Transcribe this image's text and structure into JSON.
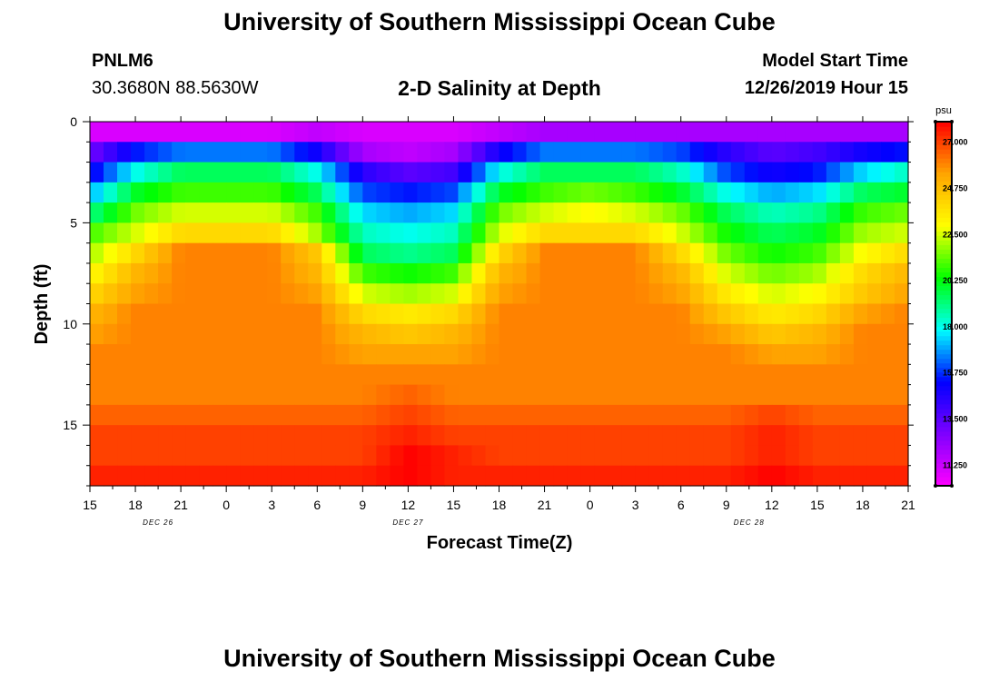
{
  "page": {
    "title_top": "University of Southern Mississippi Ocean Cube",
    "title_bottom": "University of Southern Mississippi Ocean Cube",
    "station_id": "PNLM6",
    "coordinates": "30.3680N 88.5630W",
    "plot_title": "2-D Salinity at Depth",
    "model_start_label": "Model Start Time",
    "model_start_value": "12/26/2019 Hour 15"
  },
  "colors": {
    "scale": [
      "#ff00ff",
      "#7f00ff",
      "#0000ff",
      "#00ffff",
      "#00ff00",
      "#ffff00",
      "#ffa500",
      "#ff0000"
    ],
    "axis": "#000000"
  },
  "chart_data": {
    "type": "heatmap",
    "title": "2-D Salinity at Depth",
    "xlabel": "Forecast Time(Z)",
    "ylabel": "Depth (ft)",
    "x_tick_labels": [
      "15",
      "18",
      "21",
      "0",
      "3",
      "6",
      "9",
      "12",
      "15",
      "18",
      "21",
      "0",
      "3",
      "6",
      "9",
      "12",
      "15",
      "18",
      "21"
    ],
    "date_labels": [
      {
        "label": "DEC 26",
        "tick_index": 1.5
      },
      {
        "label": "DEC 27",
        "tick_index": 7
      },
      {
        "label": "DEC 28",
        "tick_index": 14.5
      }
    ],
    "y_ticks": [
      0,
      5,
      10,
      15
    ],
    "ylim": [
      0,
      18
    ],
    "y_inverted": true,
    "colorbar": {
      "unit": "psu",
      "range": [
        10.25,
        28.0
      ],
      "tick_labels": [
        "27.000",
        "24.750",
        "22.500",
        "20.250",
        "18.000",
        "15.750",
        "13.500",
        "11.250"
      ],
      "tick_values": [
        27.0,
        24.75,
        22.5,
        20.25,
        18.0,
        15.75,
        13.5,
        11.25
      ]
    },
    "depth_levels_ft": [
      0.25,
      1.25,
      2.25,
      3.25,
      4.25,
      5.25,
      6.25,
      7.25,
      8.25,
      9.25,
      10.25,
      11.25,
      12.25,
      13.25,
      14.25,
      15.25,
      16.25,
      17.25
    ],
    "time_hours": [
      0,
      3,
      6,
      9,
      12,
      15,
      18,
      21,
      24,
      27,
      30,
      33,
      36,
      39,
      42,
      45,
      48,
      51,
      54
    ],
    "salinity_psu": [
      [
        11.0,
        11.0,
        11.0,
        11.0,
        11.0,
        11.5,
        11.0,
        11.0,
        11.0,
        11.5,
        12.0,
        12.0,
        12.0,
        12.0,
        12.0,
        12.0,
        12.0,
        12.0,
        12.0
      ],
      [
        13.0,
        15.5,
        16.5,
        16.5,
        16.5,
        15.0,
        12.0,
        11.5,
        12.0,
        15.0,
        16.5,
        16.5,
        16.5,
        16.0,
        14.5,
        13.5,
        14.0,
        15.0,
        15.5
      ],
      [
        15.0,
        18.0,
        19.5,
        19.5,
        19.5,
        18.0,
        14.5,
        13.5,
        14.0,
        18.0,
        19.5,
        19.5,
        19.5,
        18.5,
        16.0,
        15.0,
        15.5,
        17.5,
        18.5
      ],
      [
        17.0,
        20.0,
        21.0,
        21.0,
        21.0,
        19.5,
        16.0,
        15.5,
        16.0,
        20.0,
        21.0,
        21.5,
        21.0,
        20.0,
        18.0,
        17.0,
        17.5,
        19.5,
        20.0
      ],
      [
        19.0,
        21.5,
        22.5,
        22.5,
        22.5,
        21.0,
        17.5,
        17.0,
        17.5,
        21.5,
        22.5,
        23.0,
        22.5,
        21.5,
        19.5,
        18.5,
        19.0,
        21.0,
        21.5
      ],
      [
        21.0,
        22.5,
        24.0,
        24.0,
        24.0,
        22.0,
        18.5,
        18.0,
        18.5,
        22.5,
        24.0,
        24.0,
        24.0,
        22.5,
        20.5,
        19.5,
        20.0,
        22.0,
        22.5
      ],
      [
        22.0,
        24.0,
        26.0,
        26.0,
        26.0,
        24.5,
        19.5,
        19.0,
        19.5,
        24.0,
        26.0,
        26.0,
        26.0,
        24.0,
        21.5,
        20.5,
        21.0,
        23.0,
        24.0
      ],
      [
        23.0,
        25.0,
        26.0,
        26.0,
        26.0,
        25.0,
        21.0,
        20.5,
        21.0,
        25.0,
        26.0,
        26.0,
        26.0,
        25.0,
        22.5,
        21.5,
        22.0,
        24.0,
        25.0
      ],
      [
        24.0,
        25.5,
        26.0,
        26.0,
        26.0,
        25.5,
        22.5,
        22.0,
        22.5,
        25.5,
        26.0,
        26.0,
        26.0,
        25.5,
        23.5,
        22.5,
        23.0,
        24.5,
        25.5
      ],
      [
        25.0,
        26.0,
        26.0,
        26.0,
        26.0,
        26.0,
        24.0,
        23.5,
        24.0,
        26.0,
        26.0,
        26.0,
        26.0,
        26.0,
        24.5,
        23.5,
        24.0,
        25.5,
        26.0
      ],
      [
        25.5,
        26.0,
        26.0,
        26.0,
        26.0,
        26.0,
        25.0,
        24.5,
        25.0,
        26.0,
        26.0,
        26.0,
        26.0,
        26.0,
        25.5,
        24.5,
        25.0,
        26.0,
        26.0
      ],
      [
        26.0,
        26.0,
        26.0,
        26.0,
        26.0,
        26.0,
        25.5,
        25.5,
        25.5,
        26.0,
        26.0,
        26.0,
        26.0,
        26.0,
        26.0,
        25.5,
        25.5,
        26.0,
        26.0
      ],
      [
        26.0,
        26.0,
        26.0,
        26.0,
        26.0,
        26.0,
        26.0,
        26.0,
        26.0,
        26.0,
        26.0,
        26.0,
        26.0,
        26.0,
        26.0,
        26.0,
        26.0,
        26.0,
        26.0
      ],
      [
        26.0,
        26.0,
        26.0,
        26.0,
        26.0,
        26.0,
        26.0,
        26.5,
        26.0,
        26.0,
        26.0,
        26.0,
        26.0,
        26.0,
        26.0,
        26.0,
        26.0,
        26.0,
        26.0
      ],
      [
        26.5,
        26.5,
        26.5,
        26.5,
        26.5,
        26.5,
        26.5,
        27.0,
        26.5,
        26.5,
        26.5,
        26.5,
        26.5,
        26.5,
        26.5,
        27.0,
        26.5,
        26.5,
        26.5
      ],
      [
        27.0,
        27.0,
        27.0,
        27.0,
        27.0,
        27.0,
        27.0,
        27.5,
        27.0,
        27.0,
        27.0,
        27.0,
        27.0,
        27.0,
        27.0,
        27.5,
        27.0,
        27.0,
        27.0
      ],
      [
        27.0,
        27.0,
        27.0,
        27.0,
        27.0,
        27.0,
        27.0,
        28.0,
        27.5,
        27.0,
        27.0,
        27.0,
        27.0,
        27.0,
        27.0,
        27.5,
        27.0,
        27.0,
        27.0
      ],
      [
        27.5,
        27.5,
        27.5,
        27.5,
        27.5,
        27.5,
        27.5,
        28.0,
        27.5,
        27.5,
        27.5,
        27.5,
        27.5,
        27.5,
        27.5,
        28.0,
        27.5,
        27.5,
        27.5
      ]
    ]
  }
}
